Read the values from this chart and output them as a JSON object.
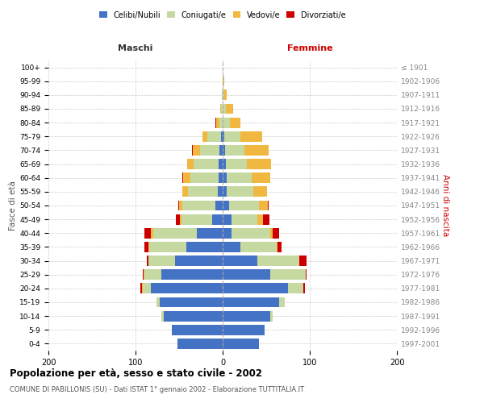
{
  "age_groups": [
    "0-4",
    "5-9",
    "10-14",
    "15-19",
    "20-24",
    "25-29",
    "30-34",
    "35-39",
    "40-44",
    "45-49",
    "50-54",
    "55-59",
    "60-64",
    "65-69",
    "70-74",
    "75-79",
    "80-84",
    "85-89",
    "90-94",
    "95-99",
    "100+"
  ],
  "birth_years": [
    "1997-2001",
    "1992-1996",
    "1987-1991",
    "1982-1986",
    "1977-1981",
    "1972-1976",
    "1967-1971",
    "1962-1966",
    "1957-1961",
    "1952-1956",
    "1947-1951",
    "1942-1946",
    "1937-1941",
    "1932-1936",
    "1927-1931",
    "1922-1926",
    "1917-1921",
    "1912-1916",
    "1907-1911",
    "1902-1906",
    "≤ 1901"
  ],
  "males": {
    "celibi": [
      52,
      58,
      68,
      72,
      82,
      70,
      55,
      42,
      30,
      12,
      8,
      6,
      5,
      5,
      4,
      2,
      0,
      0,
      0,
      0,
      0
    ],
    "coniugati": [
      0,
      0,
      2,
      4,
      10,
      20,
      30,
      42,
      50,
      35,
      38,
      34,
      32,
      28,
      22,
      16,
      4,
      2,
      1,
      0,
      0
    ],
    "vedovi": [
      0,
      0,
      0,
      0,
      1,
      1,
      0,
      1,
      2,
      2,
      4,
      6,
      8,
      8,
      8,
      5,
      3,
      1,
      0,
      0,
      0
    ],
    "divorziati": [
      0,
      0,
      0,
      0,
      1,
      1,
      2,
      5,
      8,
      5,
      1,
      0,
      1,
      0,
      1,
      0,
      1,
      0,
      0,
      0,
      0
    ]
  },
  "females": {
    "nubili": [
      42,
      48,
      55,
      65,
      75,
      55,
      40,
      20,
      10,
      10,
      7,
      5,
      5,
      4,
      3,
      2,
      0,
      0,
      0,
      0,
      0
    ],
    "coniugate": [
      0,
      0,
      2,
      6,
      18,
      40,
      48,
      42,
      45,
      30,
      35,
      30,
      28,
      24,
      22,
      18,
      8,
      4,
      2,
      1,
      0
    ],
    "vedove": [
      0,
      0,
      0,
      0,
      0,
      0,
      0,
      1,
      2,
      6,
      10,
      16,
      22,
      28,
      28,
      25,
      12,
      8,
      3,
      1,
      0
    ],
    "divorziate": [
      0,
      0,
      0,
      0,
      1,
      1,
      8,
      5,
      8,
      8,
      1,
      0,
      0,
      0,
      0,
      0,
      0,
      0,
      0,
      0,
      0
    ]
  },
  "colors": {
    "celibi_nubili": "#4472c4",
    "coniugati": "#c5d9a0",
    "vedovi": "#f0b840",
    "divorziati": "#cc0000"
  },
  "title": "Popolazione per età, sesso e stato civile - 2002",
  "subtitle": "COMUNE DI PABILLONIS (SU) - Dati ISTAT 1° gennaio 2002 - Elaborazione TUTTITALIA.IT",
  "xlabel_left": "Maschi",
  "xlabel_right": "Femmine",
  "ylabel_left": "Fasce di età",
  "ylabel_right": "Anni di nascita",
  "xlim": 200,
  "bg_color": "#ffffff",
  "grid_color": "#cccccc"
}
